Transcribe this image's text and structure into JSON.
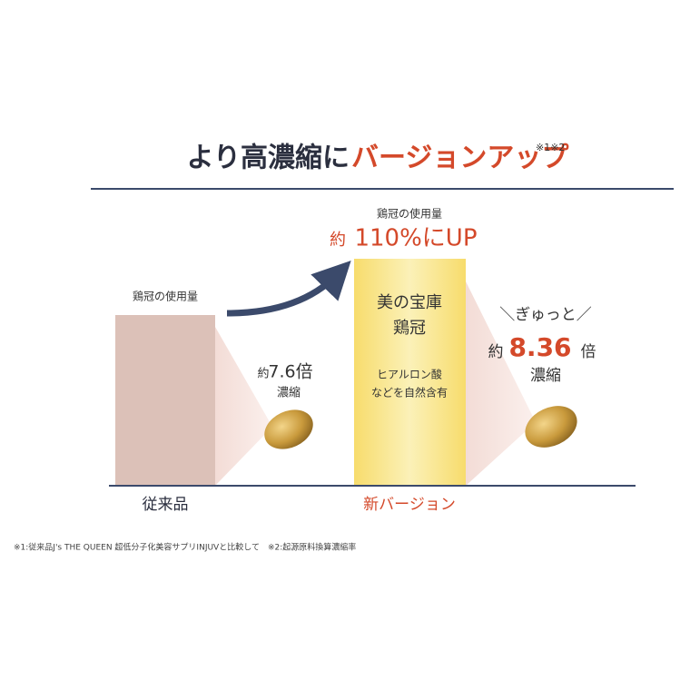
{
  "header": {
    "title_black": "より高濃縮に",
    "title_red": "バージョンアップ",
    "title_note": "※1※2"
  },
  "old": {
    "usage_label": "鶏冠の使用量",
    "ratio_prefix": "約",
    "ratio": "7.6倍",
    "ratio_unit": "濃縮",
    "name": "従来品"
  },
  "new": {
    "usage_label": "鶏冠の使用量",
    "usage_prefix": "約",
    "usage_up": "110%にUP",
    "box_line1": "美の宝庫",
    "box_line2": "鶏冠",
    "box_line3": "ヒアルロン酸",
    "box_line4": "などを自然含有",
    "squeeze": "＼ぎゅっと／",
    "ratio_prefix": "約",
    "ratio": "8.36",
    "ratio_suffix": "倍",
    "ratio_unit": "濃縮",
    "name": "新バージョン"
  },
  "footnote": "※1:従来品J's THE QUEEN 超低分子化美容サプリINJUVと比較して　※2:起源原料換算濃縮率"
}
